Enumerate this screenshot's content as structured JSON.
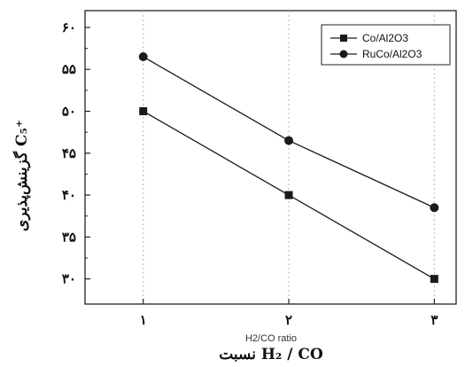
{
  "chart_data": {
    "type": "line",
    "categories": [
      "۱",
      "۲",
      "۳"
    ],
    "x": [
      1,
      2,
      3
    ],
    "series": [
      {
        "name": "Co/Al2O3",
        "values": [
          50,
          40,
          30
        ],
        "marker": "square",
        "color": "#1a1a1a"
      },
      {
        "name": "RuCo/Al2O3",
        "values": [
          56.5,
          46.5,
          38.5
        ],
        "marker": "circle",
        "color": "#1a1a1a"
      }
    ],
    "xlabel": "H2/CO ratio",
    "xlabel_fa": "نسبت H₂ / CO",
    "ylabel_fa": "گزینش‌پذیری C₅⁺",
    "yticks": [
      {
        "value": 30,
        "label": "۳۰"
      },
      {
        "value": 35,
        "label": "۳۵"
      },
      {
        "value": 40,
        "label": "۴۰"
      },
      {
        "value": 45,
        "label": "۴۵"
      },
      {
        "value": 50,
        "label": "۵۰"
      },
      {
        "value": 55,
        "label": "۵۵"
      },
      {
        "value": 60,
        "label": "۶۰"
      }
    ],
    "ylim": [
      27,
      62
    ],
    "xlim": [
      0.6,
      3.15
    ],
    "grid": "vertical dotted at categories",
    "legend_position": "top-right"
  }
}
